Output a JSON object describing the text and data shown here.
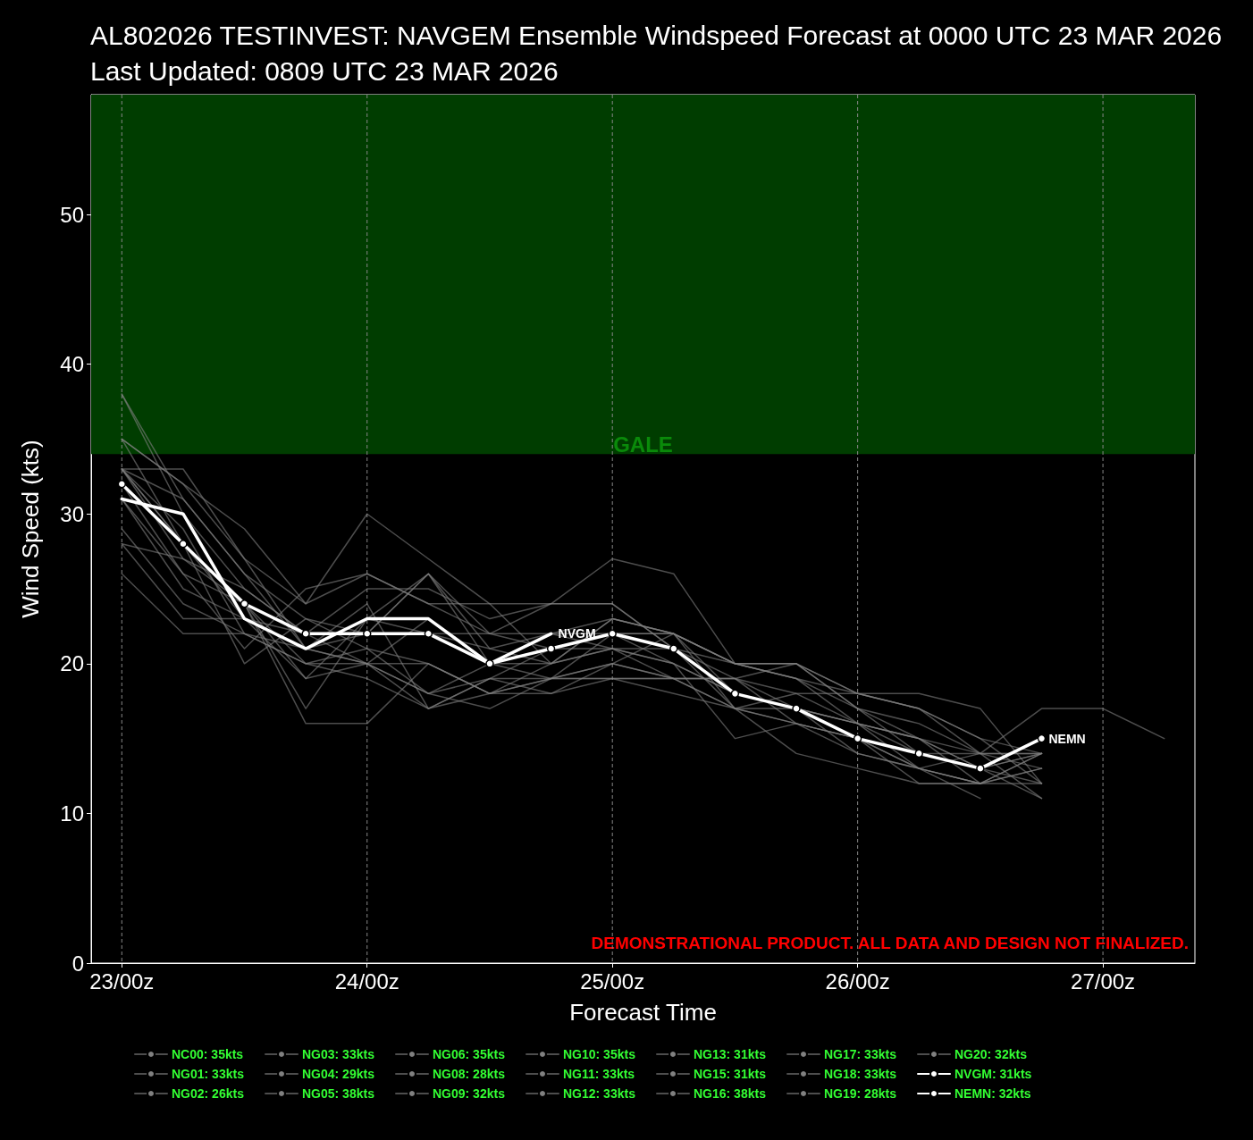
{
  "chart_data": {
    "type": "line",
    "title": "AL802026 TESTINVEST: NAVGEM Ensemble Windspeed Forecast at 0000 UTC 23 MAR 2026",
    "subtitle": "Last Updated: 0809 UTC 23 MAR 2026",
    "xlabel": "Forecast Time",
    "ylabel": "Wind Speed (kts)",
    "categories": [
      "23/00z",
      null,
      null,
      null,
      "24/00z",
      null,
      null,
      null,
      "25/00z",
      null,
      null,
      null,
      "26/00z",
      null,
      null,
      null,
      "27/00z",
      null
    ],
    "ylim": [
      0,
      58
    ],
    "yticks": [
      0,
      10,
      20,
      30,
      40,
      50
    ],
    "grid": "x",
    "legend": "bottom",
    "line_style": "solid",
    "marker": "none",
    "bands": [
      {
        "axis": "y",
        "from": 34,
        "to": 58,
        "label": "GALE",
        "color": "#003d00"
      }
    ],
    "annotations": [
      "DEMONSTRATIONAL PRODUCT. ALL DATA AND DESIGN NOT FINALIZED.",
      "NVGM",
      "NEMN"
    ],
    "series": [
      {
        "name": "NC00: 35kts",
        "color": "#808080",
        "values": [
          35,
          32,
          27,
          24,
          26,
          24,
          22,
          22,
          23,
          22,
          20,
          20,
          18,
          17,
          15,
          12,
          null,
          null
        ]
      },
      {
        "name": "NG01: 33kts",
        "color": "#808080",
        "values": [
          33,
          27,
          25,
          22,
          20,
          18,
          20,
          20,
          21,
          20,
          18,
          17,
          16,
          13,
          12,
          13,
          null,
          null
        ]
      },
      {
        "name": "NG02: 26kts",
        "color": "#808080",
        "values": [
          26,
          22,
          22,
          20,
          19,
          17,
          19,
          19,
          19,
          19,
          19,
          17,
          16,
          15,
          14,
          14,
          null,
          null
        ]
      },
      {
        "name": "NG03: 33kts",
        "color": "#808080",
        "values": [
          33,
          33,
          27,
          21,
          20,
          20,
          18,
          18,
          20,
          19,
          17,
          17,
          14,
          13,
          11,
          null,
          null,
          null
        ]
      },
      {
        "name": "NG04: 29kts",
        "color": "#808080",
        "values": [
          29,
          24,
          22,
          20,
          21,
          18,
          17,
          19,
          20,
          19,
          17,
          16,
          15,
          12,
          12,
          14,
          null,
          null
        ]
      },
      {
        "name": "NG05: 38kts",
        "color": "#808080",
        "values": [
          38,
          31,
          26,
          23,
          22,
          26,
          21,
          22,
          22,
          22,
          20,
          20,
          18,
          17,
          14,
          17,
          17,
          15
        ]
      },
      {
        "name": "NG06: 35kts",
        "color": "#808080",
        "values": [
          35,
          28,
          24,
          17,
          23,
          26,
          22,
          24,
          24,
          21,
          20,
          19,
          16,
          15,
          13,
          12,
          null,
          null
        ]
      },
      {
        "name": "NG08: 28kts",
        "color": "#808080",
        "values": [
          28,
          23,
          23,
          22,
          25,
          25,
          23,
          24,
          24,
          21,
          19,
          18,
          18,
          17,
          15,
          14,
          null,
          null
        ]
      },
      {
        "name": "NG09: 32kts",
        "color": "#808080",
        "values": [
          32,
          26,
          21,
          25,
          26,
          24,
          24,
          24,
          27,
          26,
          20,
          19,
          18,
          18,
          17,
          12,
          null,
          null
        ]
      },
      {
        "name": "NG10: 35kts",
        "color": "#808080",
        "values": [
          35,
          32,
          29,
          24,
          30,
          27,
          24,
          20,
          23,
          22,
          20,
          20,
          17,
          15,
          13,
          14,
          null,
          null
        ]
      },
      {
        "name": "NG11: 33kts",
        "color": "#808080",
        "values": [
          33,
          28,
          24,
          16,
          16,
          20,
          18,
          20,
          21,
          19,
          19,
          20,
          17,
          16,
          14,
          11,
          null,
          null
        ]
      },
      {
        "name": "NG12: 33kts",
        "color": "#808080",
        "values": [
          33,
          31,
          26,
          21,
          20,
          18,
          19,
          21,
          21,
          21,
          17,
          16,
          15,
          14,
          13,
          14,
          null,
          null
        ]
      },
      {
        "name": "NG13: 31kts",
        "color": "#808080",
        "values": [
          31,
          25,
          23,
          21,
          24,
          17,
          19,
          18,
          19,
          18,
          17,
          14,
          13,
          12,
          12,
          13,
          null,
          null
        ]
      },
      {
        "name": "NG15: 31kts",
        "color": "#808080",
        "values": [
          31,
          26,
          24,
          19,
          20,
          23,
          20,
          22,
          21,
          20,
          15,
          16,
          14,
          13,
          12,
          12,
          null,
          null
        ]
      },
      {
        "name": "NG16: 38kts",
        "color": "#808080",
        "values": [
          38,
          30,
          25,
          22,
          22,
          22,
          22,
          21,
          22,
          22,
          20,
          19,
          17,
          14,
          14,
          14,
          null,
          null
        ]
      },
      {
        "name": "NG17: 33kts",
        "color": "#808080",
        "values": [
          33,
          28,
          20,
          23,
          21,
          20,
          18,
          19,
          22,
          20,
          18,
          17,
          15,
          13,
          14,
          13,
          null,
          null
        ]
      },
      {
        "name": "NG18: 33kts",
        "color": "#808080",
        "values": [
          33,
          29,
          22,
          21,
          22,
          26,
          20,
          19,
          20,
          22,
          17,
          18,
          16,
          15,
          12,
          null,
          null,
          null
        ]
      },
      {
        "name": "NG19: 28kts",
        "color": "#808080",
        "values": [
          28,
          27,
          24,
          20,
          20,
          17,
          18,
          19,
          19,
          19,
          19,
          16,
          15,
          13,
          12,
          14,
          null,
          null
        ]
      },
      {
        "name": "NG20: 32kts",
        "color": "#808080",
        "values": [
          32,
          28,
          23,
          19,
          23,
          22,
          21,
          20,
          23,
          22,
          18,
          17,
          16,
          14,
          13,
          11,
          null,
          null
        ]
      },
      {
        "name": "NVGM: 31kts",
        "color": "#ffffff",
        "values": [
          31,
          30,
          23,
          21,
          23,
          23,
          20,
          22,
          null,
          null,
          null,
          null,
          null,
          null,
          null,
          null,
          null,
          null
        ]
      },
      {
        "name": "NEMN: 32kts",
        "color": "#ffffff",
        "marker": "circle",
        "values": [
          32,
          28,
          24,
          22,
          22,
          22,
          20,
          21,
          22,
          21,
          18,
          17,
          15,
          14,
          13,
          15,
          null,
          null
        ]
      }
    ]
  }
}
